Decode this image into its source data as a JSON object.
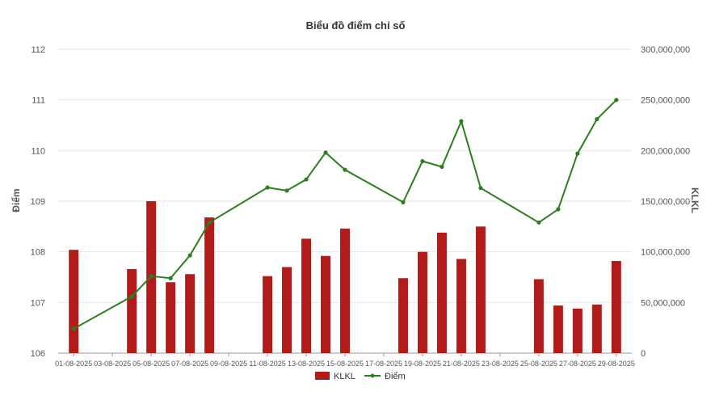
{
  "chart_data": {
    "type": "bar+line",
    "title": "Biểu đồ điểm chỉ số",
    "ylabel_left": "Điểm",
    "ylabel_right": "KLKL",
    "y_left": {
      "min": 106,
      "max": 112,
      "ticks": [
        "106",
        "107",
        "108",
        "109",
        "110",
        "111",
        "112"
      ]
    },
    "y_right": {
      "min": 0,
      "max": 300000000,
      "ticks": [
        "0",
        "50,000,000",
        "100,000,000",
        "150,000,000",
        "200,000,000",
        "250,000,000",
        "300,000,000"
      ]
    },
    "x_tick_labels": [
      "01-08-2025",
      "03-08-2025",
      "05-08-2025",
      "07-08-2025",
      "09-08-2025",
      "11-08-2025",
      "13-08-2025",
      "15-08-2025",
      "17-08-2025",
      "19-08-2025",
      "21-08-2025",
      "23-08-2025",
      "25-08-2025",
      "27-08-2025",
      "29-08-2025"
    ],
    "series": [
      {
        "name": "KLKL",
        "kind": "bar",
        "color": "#b31b1b",
        "points": [
          {
            "day": 1,
            "value": 102000000
          },
          {
            "day": 4,
            "value": 83000000
          },
          {
            "day": 5,
            "value": 150000000
          },
          {
            "day": 6,
            "value": 70000000
          },
          {
            "day": 7,
            "value": 78000000
          },
          {
            "day": 8,
            "value": 134000000
          },
          {
            "day": 11,
            "value": 76000000
          },
          {
            "day": 12,
            "value": 85000000
          },
          {
            "day": 13,
            "value": 113000000
          },
          {
            "day": 14,
            "value": 96000000
          },
          {
            "day": 15,
            "value": 123000000
          },
          {
            "day": 18,
            "value": 74000000
          },
          {
            "day": 19,
            "value": 100000000
          },
          {
            "day": 20,
            "value": 119000000
          },
          {
            "day": 21,
            "value": 93000000
          },
          {
            "day": 22,
            "value": 125000000
          },
          {
            "day": 25,
            "value": 73000000
          },
          {
            "day": 26,
            "value": 47000000
          },
          {
            "day": 27,
            "value": 44000000
          },
          {
            "day": 28,
            "value": 48000000
          },
          {
            "day": 29,
            "value": 91000000
          }
        ]
      },
      {
        "name": "Điểm",
        "kind": "line",
        "color": "#2e7d1e",
        "points": [
          {
            "day": 1,
            "value": 106.48
          },
          {
            "day": 4,
            "value": 107.12
          },
          {
            "day": 5,
            "value": 107.52
          },
          {
            "day": 6,
            "value": 107.48
          },
          {
            "day": 7,
            "value": 107.93
          },
          {
            "day": 8,
            "value": 108.58
          },
          {
            "day": 11,
            "value": 109.27
          },
          {
            "day": 12,
            "value": 109.21
          },
          {
            "day": 13,
            "value": 109.43
          },
          {
            "day": 14,
            "value": 109.96
          },
          {
            "day": 15,
            "value": 109.62
          },
          {
            "day": 18,
            "value": 108.98
          },
          {
            "day": 19,
            "value": 109.79
          },
          {
            "day": 20,
            "value": 109.68
          },
          {
            "day": 21,
            "value": 110.58
          },
          {
            "day": 22,
            "value": 109.26
          },
          {
            "day": 25,
            "value": 108.58
          },
          {
            "day": 26,
            "value": 108.84
          },
          {
            "day": 27,
            "value": 109.94
          },
          {
            "day": 28,
            "value": 110.62
          },
          {
            "day": 29,
            "value": 111.0
          }
        ]
      }
    ],
    "legend": {
      "position": "bottom-center",
      "items": [
        {
          "label": "KLKL",
          "color": "#b31b1b",
          "shape": "rect"
        },
        {
          "label": "Điểm",
          "color": "#2e7d1e",
          "shape": "line-dot"
        }
      ]
    },
    "grid": true
  }
}
